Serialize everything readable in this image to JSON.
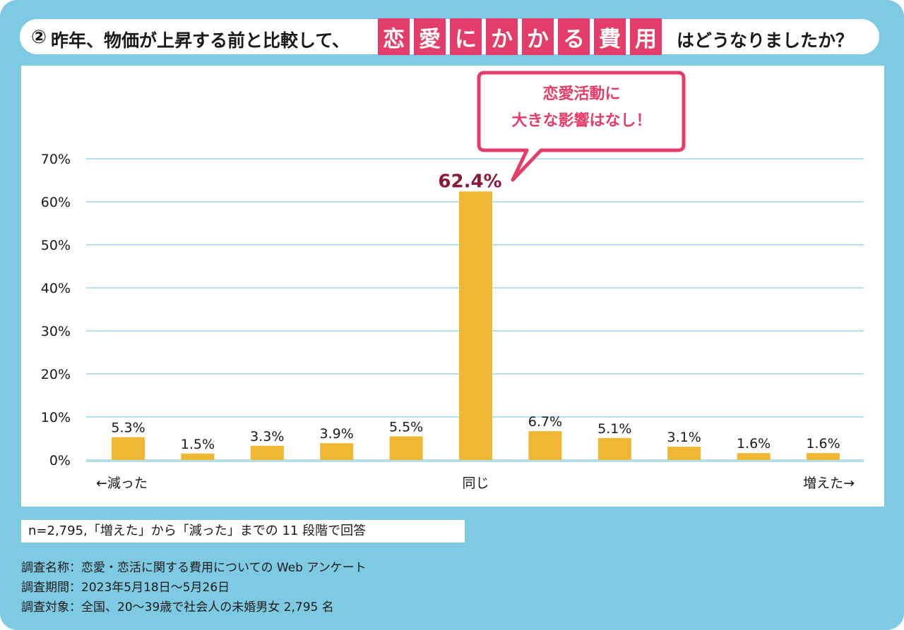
{
  "title": {
    "number": "②",
    "prefix": "昨年、物価が上昇する前と比較して、",
    "highlight": [
      "恋",
      "愛",
      "に",
      "か",
      "か",
      "る",
      "費",
      "用"
    ],
    "suffix": "はどうなりましたか？"
  },
  "callout": {
    "line1": "恋愛活動に",
    "line2": "大きな影響はなし！"
  },
  "chart_data": {
    "type": "bar",
    "categories": [
      "←減った",
      "",
      "",
      "",
      "",
      "同じ",
      "",
      "",
      "",
      "",
      "増えた→"
    ],
    "values": [
      5.3,
      1.5,
      3.3,
      3.9,
      5.5,
      62.4,
      6.7,
      5.1,
      3.1,
      1.6,
      1.6
    ],
    "data_labels": [
      "5.3%",
      "1.5%",
      "3.3%",
      "3.9%",
      "5.5%",
      "62.4%",
      "6.7%",
      "5.1%",
      "3.1%",
      "1.6%",
      "1.6%"
    ],
    "highlight_index": 5,
    "yticks": [
      "0%",
      "10%",
      "20%",
      "30%",
      "40%",
      "50%",
      "60%",
      "70%"
    ],
    "ylim": [
      0,
      70
    ],
    "grid": true,
    "bar_color": "#efb733",
    "highlight_label_color": "#8b1a3a",
    "grid_color": "#b4dfef",
    "accent_color": "#e53d6a"
  },
  "sample_note": "n=2,795,「増えた」から「減った」までの 11 段階で回答",
  "survey": {
    "name_label": "調査名称：",
    "name_value": "恋愛・恋活に関する費用についての Web アンケート",
    "period_label": "調査期間：",
    "period_value": "2023年5月18日〜5月26日",
    "target_label": "調査対象：",
    "target_value": "全国、20〜39歳で社会人の未婚男女 2,795 名"
  }
}
